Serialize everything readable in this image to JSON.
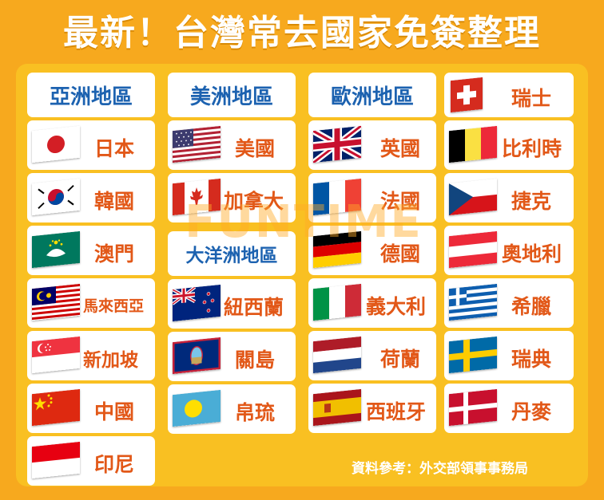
{
  "title": "最新！台灣常去國家免簽整理",
  "watermark": "FUNTIME",
  "source": "資料參考：外交部領事事務局",
  "regions": {
    "asia": "亞洲地區",
    "america": "美洲地區",
    "oceania": "大洋洲地區",
    "europe": "歐洲地區"
  },
  "countries": {
    "japan": "日本",
    "korea": "韓國",
    "macau": "澳門",
    "malaysia": "馬來西亞",
    "singapore": "新加坡",
    "china": "中國",
    "indonesia": "印尼",
    "usa": "美國",
    "canada": "加拿大",
    "newzealand": "紐西蘭",
    "guam": "關島",
    "palau": "帛琉",
    "uk": "英國",
    "france": "法國",
    "germany": "德國",
    "italy": "義大利",
    "netherlands": "荷蘭",
    "spain": "西班牙",
    "switzerland": "瑞士",
    "belgium": "比利時",
    "czech": "捷克",
    "austria": "奧地利",
    "greece": "希臘",
    "sweden": "瑞典",
    "denmark": "丹麥"
  },
  "colors": {
    "background": "#f7a91e",
    "panel": "#f9c022",
    "heading": "#1c62b0",
    "country": "#e25818"
  }
}
